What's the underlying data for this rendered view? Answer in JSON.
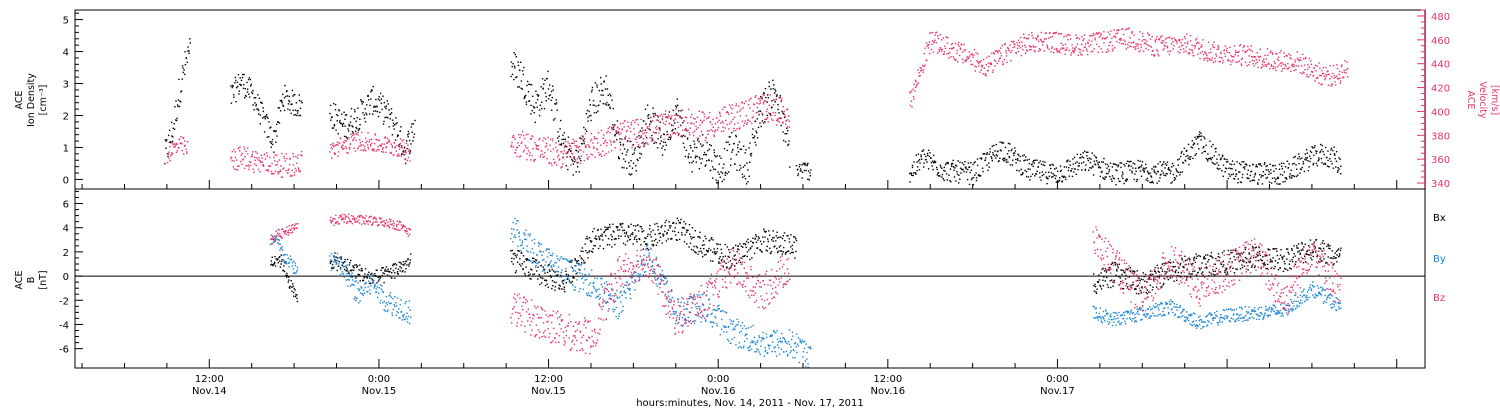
{
  "colors": {
    "axis": "#000000",
    "density": "#000000",
    "velocity": "#e8336b",
    "bx": "#000000",
    "by": "#1a86d6",
    "bz": "#e8336b"
  },
  "chart_data": [
    {
      "type": "scatter",
      "panel": "top",
      "x_axis": {
        "unit": "hours from 2011-11-14 00:00",
        "range": [
          2.5,
          98
        ],
        "major_ticks": [
          12,
          24,
          36,
          48,
          60,
          72
        ],
        "tick_labels": [
          {
            "time": "12:00",
            "date": "Nov.14"
          },
          {
            "time": "0:00",
            "date": "Nov.15"
          },
          {
            "time": "12:00",
            "date": "Nov.15"
          },
          {
            "time": "0:00",
            "date": "Nov.16"
          },
          {
            "time": "12:00",
            "date": "Nov.16"
          },
          {
            "time": "0:00",
            "date": "Nov.17"
          }
        ],
        "title": "hours:minutes, Nov. 14, 2011 - Nov. 17, 2011"
      },
      "y_left": {
        "label_lines": [
          "ACE",
          "Ion Density",
          "[cm⁻³]"
        ],
        "range": [
          -0.3,
          5.3
        ],
        "ticks": [
          "0",
          "1",
          "2",
          "3",
          "4",
          "5"
        ]
      },
      "y_right": {
        "label_lines": [
          "ACE",
          "Velocity",
          "[km/s]"
        ],
        "range": [
          335,
          485
        ],
        "ticks": [
          "340",
          "360",
          "380",
          "400",
          "420",
          "440",
          "460",
          "480"
        ]
      },
      "series": [
        {
          "kind": "density",
          "color": "#000000",
          "segments": [
            {
              "x": [
                8.8,
                9.4,
                9.8,
                10.2,
                10.6
              ],
              "y": [
                0.7,
                1.6,
                2.7,
                3.5,
                4.1
              ],
              "spread": 0.5
            },
            {
              "x": [
                13.5,
                14.2,
                15.0,
                15.8,
                16.5,
                17.2,
                17.9,
                18.5
              ],
              "y": [
                2.6,
                3.1,
                2.7,
                1.9,
                1.2,
                2.6,
                2.4,
                2.3
              ],
              "spread": 0.4
            },
            {
              "x": [
                20.5,
                21.5,
                22.5,
                23.5,
                24.5,
                25.2,
                25.8,
                26.5
              ],
              "y": [
                2.1,
                1.7,
                2.0,
                2.5,
                2.1,
                1.6,
                0.9,
                1.7
              ],
              "spread": 0.45
            },
            {
              "x": [
                33.3,
                34.0,
                35.0,
                36.0,
                37.0,
                38.0,
                39.0,
                40.0,
                41.0,
                42.0,
                43.0,
                44.0,
                45.0,
                46.0,
                47.0,
                48.0,
                49.0,
                50.0,
                51.0,
                52.0,
                53.0
              ],
              "y": [
                3.6,
                3.3,
                2.3,
                3.0,
                1.0,
                0.5,
                2.4,
                2.9,
                1.0,
                0.6,
                2.0,
                1.2,
                2.2,
                0.7,
                1.0,
                0.3,
                1.0,
                0.4,
                2.2,
                2.8,
                0.9
              ],
              "spread": 0.55
            },
            {
              "x": [
                53.5,
                54.5
              ],
              "y": [
                0.3,
                0.3
              ],
              "spread": 0.3
            },
            {
              "x": [
                61.5,
                62.5,
                64.0,
                66.0,
                68.0,
                70.0,
                72.0,
                74.0,
                76.0,
                78.0,
                80.0,
                82.0,
                84.0,
                86.0,
                88.0,
                89.5,
                90.5,
                91.5,
                92.0
              ],
              "y": [
                0.2,
                0.7,
                0.3,
                0.2,
                1.0,
                0.3,
                0.2,
                0.6,
                0.2,
                0.3,
                0.2,
                1.2,
                0.3,
                0.2,
                0.2,
                0.6,
                0.8,
                0.7,
                0.4
              ],
              "spread": 0.35
            }
          ]
        },
        {
          "kind": "velocity",
          "color": "#e8336b",
          "segments": [
            {
              "x": [
                9.0,
                9.5,
                10.0,
                10.4
              ],
              "y": [
                365,
                370,
                372,
                368
              ],
              "spread": 8
            },
            {
              "x": [
                13.5,
                14.5,
                15.5,
                16.5,
                17.5,
                18.5
              ],
              "y": [
                360,
                362,
                358,
                356,
                355,
                358
              ],
              "spread": 10
            },
            {
              "x": [
                20.5,
                21.5,
                22.5,
                23.5,
                24.5,
                25.5,
                26.2
              ],
              "y": [
                368,
                372,
                376,
                374,
                372,
                370,
                366
              ],
              "spread": 8
            },
            {
              "x": [
                33.3,
                35.0,
                37.0,
                39.0,
                41.0,
                43.0,
                45.0,
                47.0,
                49.0,
                51.0,
                53.0
              ],
              "y": [
                376,
                370,
                364,
                372,
                380,
                384,
                392,
                388,
                395,
                405,
                398
              ],
              "spread": 12
            },
            {
              "x": [
                61.5,
                63.0,
                65.0,
                67.0,
                69.0,
                71.0,
                73.0,
                75.0,
                77.0,
                79.0,
                81.0,
                83.0,
                85.0,
                87.0,
                89.0,
                90.5,
                91.5,
                92.5
              ],
              "y": [
                408,
                460,
                450,
                438,
                455,
                460,
                456,
                458,
                462,
                455,
                457,
                450,
                448,
                444,
                442,
                432,
                430,
                436
              ],
              "spread": 9
            }
          ]
        }
      ]
    },
    {
      "type": "scatter",
      "panel": "bottom",
      "y_left": {
        "label_lines": [
          "ACE",
          "B",
          "[nT]"
        ],
        "range": [
          -7.6,
          7.2
        ],
        "ticks": [
          "-6",
          "-4",
          "-2",
          "0",
          "2",
          "4",
          "6"
        ],
        "zero_line": true
      },
      "legend": {
        "placement": "right",
        "entries": [
          "Bx",
          "By",
          "Bz"
        ]
      },
      "series": [
        {
          "name": "Bx",
          "color": "#000000",
          "segments": [
            {
              "x": [
                16.3,
                16.8,
                17.3,
                17.8,
                18.2
              ],
              "y": [
                1.2,
                1.6,
                0.8,
                -1.0,
                -2.0
              ],
              "spread": 0.6
            },
            {
              "x": [
                20.5,
                21.5,
                22.5,
                23.5,
                24.5,
                25.5,
                26.2
              ],
              "y": [
                1.4,
                1.0,
                0.4,
                -0.2,
                0.2,
                0.8,
                1.2
              ],
              "spread": 0.7
            },
            {
              "x": [
                33.3,
                35.0,
                37.0,
                39.0,
                41.0,
                43.0,
                45.0,
                47.0,
                49.0,
                51.0,
                53.5
              ],
              "y": [
                1.5,
                0.5,
                -0.5,
                3.0,
                3.5,
                3.2,
                4.0,
                2.5,
                1.5,
                3.0,
                2.5
              ],
              "spread": 1.0
            },
            {
              "x": [
                74.5,
                76.0,
                78.0,
                80.0,
                82.0,
                84.0,
                86.0,
                88.0,
                90.0,
                92.0
              ],
              "y": [
                -0.5,
                0.2,
                -0.6,
                0.5,
                1.0,
                1.2,
                1.6,
                1.4,
                2.4,
                1.5
              ],
              "spread": 1.0
            }
          ]
        },
        {
          "name": "By",
          "color": "#1a86d6",
          "segments": [
            {
              "x": [
                16.3,
                16.8,
                17.3,
                17.8,
                18.2
              ],
              "y": [
                3.0,
                2.8,
                1.6,
                1.0,
                0.5
              ],
              "spread": 0.6
            },
            {
              "x": [
                20.5,
                21.5,
                22.5,
                23.5,
                24.5,
                25.5,
                26.2
              ],
              "y": [
                1.5,
                0.5,
                -1.5,
                -0.5,
                -2.0,
                -2.5,
                -3.0
              ],
              "spread": 1.0
            },
            {
              "x": [
                33.3,
                35.0,
                37.0,
                39.0,
                41.0,
                43.0,
                45.0,
                47.0,
                49.0,
                51.0,
                53.0,
                54.5
              ],
              "y": [
                4.0,
                2.0,
                0.5,
                -0.5,
                -2.5,
                2.0,
                -3.0,
                -2.5,
                -4.5,
                -5.5,
                -5.5,
                -6.5
              ],
              "spread": 1.2
            },
            {
              "x": [
                74.5,
                76.0,
                78.0,
                80.0,
                82.0,
                84.0,
                86.0,
                88.0,
                90.0,
                92.0
              ],
              "y": [
                -3.0,
                -3.5,
                -3.0,
                -2.5,
                -3.8,
                -3.2,
                -3.0,
                -2.8,
                -1.0,
                -2.5
              ],
              "spread": 0.6
            }
          ]
        },
        {
          "name": "Bz",
          "color": "#e8336b",
          "segments": [
            {
              "x": [
                16.3,
                16.8,
                17.3,
                17.8,
                18.2
              ],
              "y": [
                3.0,
                3.5,
                3.6,
                4.0,
                4.3
              ],
              "spread": 0.4
            },
            {
              "x": [
                20.5,
                21.5,
                22.5,
                23.5,
                24.5,
                25.5,
                26.2
              ],
              "y": [
                4.6,
                4.8,
                4.7,
                4.6,
                4.5,
                4.2,
                3.6
              ],
              "spread": 0.4
            },
            {
              "x": [
                33.3,
                35.0,
                37.0,
                39.0,
                41.0,
                43.0,
                45.0,
                47.0,
                49.0,
                51.0,
                53.0
              ],
              "y": [
                -2.5,
                -3.5,
                -4.5,
                -5.0,
                0.5,
                1.5,
                -3.5,
                -2.0,
                1.0,
                -1.5,
                1.0
              ],
              "spread": 1.5
            },
            {
              "x": [
                74.5,
                76.0,
                78.0,
                80.0,
                82.0,
                84.0,
                86.0,
                88.0,
                90.0,
                92.0
              ],
              "y": [
                3.0,
                1.0,
                -2.0,
                1.5,
                -1.0,
                0.5,
                2.0,
                -2.0,
                2.5,
                -1.5
              ],
              "spread": 1.5
            }
          ]
        }
      ]
    }
  ]
}
